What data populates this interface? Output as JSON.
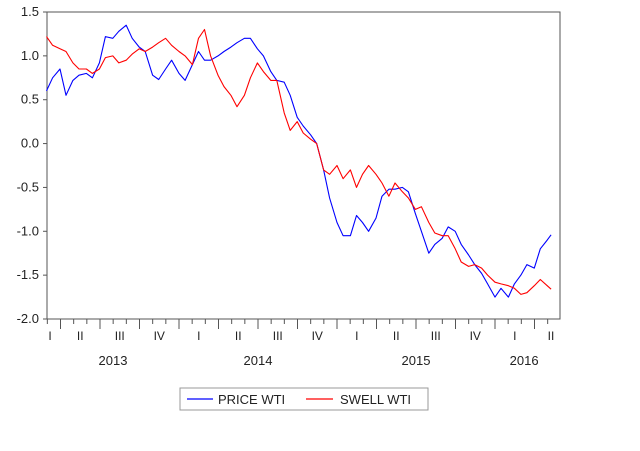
{
  "chart_data": {
    "type": "line",
    "title": "",
    "xlabel": "",
    "ylabel": "",
    "ylim": [
      -2.0,
      1.5
    ],
    "yticks": [
      "1.5",
      "1.0",
      "0.5",
      "0.0",
      "-0.5",
      "-1.0",
      "-1.5",
      "-2.0"
    ],
    "xrange": [
      "2013-03-01",
      "2016-05-15"
    ],
    "quarter_labels": [
      "I",
      "II",
      "III",
      "IV"
    ],
    "years": [
      "2013",
      "2014",
      "2015",
      "2016"
    ],
    "grid": false,
    "legend_placement": "bottom",
    "series": [
      {
        "name": "PRICE WTI",
        "color": "#0000ff",
        "points": [
          [
            "2013-03-01",
            0.6
          ],
          [
            "2013-03-15",
            0.75
          ],
          [
            "2013-04-01",
            0.85
          ],
          [
            "2013-04-15",
            0.55
          ],
          [
            "2013-05-01",
            0.72
          ],
          [
            "2013-05-15",
            0.78
          ],
          [
            "2013-06-01",
            0.8
          ],
          [
            "2013-06-15",
            0.75
          ],
          [
            "2013-07-01",
            0.92
          ],
          [
            "2013-07-15",
            1.22
          ],
          [
            "2013-08-01",
            1.2
          ],
          [
            "2013-08-15",
            1.28
          ],
          [
            "2013-09-01",
            1.35
          ],
          [
            "2013-09-15",
            1.2
          ],
          [
            "2013-10-01",
            1.1
          ],
          [
            "2013-10-15",
            1.05
          ],
          [
            "2013-11-01",
            0.78
          ],
          [
            "2013-11-15",
            0.73
          ],
          [
            "2013-12-01",
            0.85
          ],
          [
            "2013-12-15",
            0.95
          ],
          [
            "2014-01-01",
            0.8
          ],
          [
            "2014-01-15",
            0.72
          ],
          [
            "2014-02-01",
            0.9
          ],
          [
            "2014-02-15",
            1.05
          ],
          [
            "2014-03-01",
            0.95
          ],
          [
            "2014-03-15",
            0.95
          ],
          [
            "2014-04-01",
            1.0
          ],
          [
            "2014-04-15",
            1.05
          ],
          [
            "2014-05-01",
            1.1
          ],
          [
            "2014-05-15",
            1.15
          ],
          [
            "2014-06-01",
            1.2
          ],
          [
            "2014-06-15",
            1.2
          ],
          [
            "2014-07-01",
            1.08
          ],
          [
            "2014-07-15",
            1.0
          ],
          [
            "2014-08-01",
            0.82
          ],
          [
            "2014-08-15",
            0.72
          ],
          [
            "2014-09-01",
            0.7
          ],
          [
            "2014-09-15",
            0.55
          ],
          [
            "2014-10-01",
            0.3
          ],
          [
            "2014-10-15",
            0.2
          ],
          [
            "2014-11-01",
            0.1
          ],
          [
            "2014-11-15",
            0.0
          ],
          [
            "2014-12-01",
            -0.3
          ],
          [
            "2014-12-15",
            -0.62
          ],
          [
            "2015-01-01",
            -0.9
          ],
          [
            "2015-01-15",
            -1.05
          ],
          [
            "2015-02-01",
            -1.05
          ],
          [
            "2015-02-15",
            -0.82
          ],
          [
            "2015-03-01",
            -0.9
          ],
          [
            "2015-03-15",
            -1.0
          ],
          [
            "2015-04-01",
            -0.85
          ],
          [
            "2015-04-15",
            -0.6
          ],
          [
            "2015-05-01",
            -0.52
          ],
          [
            "2015-05-15",
            -0.52
          ],
          [
            "2015-06-01",
            -0.5
          ],
          [
            "2015-06-15",
            -0.55
          ],
          [
            "2015-07-01",
            -0.8
          ],
          [
            "2015-07-15",
            -1.0
          ],
          [
            "2015-08-01",
            -1.25
          ],
          [
            "2015-08-15",
            -1.15
          ],
          [
            "2015-09-01",
            -1.08
          ],
          [
            "2015-09-15",
            -0.95
          ],
          [
            "2015-10-01",
            -1.0
          ],
          [
            "2015-10-15",
            -1.15
          ],
          [
            "2015-11-01",
            -1.27
          ],
          [
            "2015-11-15",
            -1.38
          ],
          [
            "2015-12-01",
            -1.48
          ],
          [
            "2015-12-15",
            -1.6
          ],
          [
            "2016-01-01",
            -1.75
          ],
          [
            "2016-01-15",
            -1.65
          ],
          [
            "2016-02-01",
            -1.75
          ],
          [
            "2016-02-15",
            -1.6
          ],
          [
            "2016-03-01",
            -1.5
          ],
          [
            "2016-03-15",
            -1.38
          ],
          [
            "2016-04-01",
            -1.42
          ],
          [
            "2016-04-15",
            -1.2
          ],
          [
            "2016-05-01",
            -1.1
          ],
          [
            "2016-05-10",
            -1.04
          ]
        ]
      },
      {
        "name": "SWELL WTI",
        "color": "#ff0000",
        "points": [
          [
            "2013-03-01",
            1.22
          ],
          [
            "2013-03-15",
            1.12
          ],
          [
            "2013-04-01",
            1.08
          ],
          [
            "2013-04-15",
            1.05
          ],
          [
            "2013-05-01",
            0.92
          ],
          [
            "2013-05-15",
            0.85
          ],
          [
            "2013-06-01",
            0.85
          ],
          [
            "2013-06-15",
            0.8
          ],
          [
            "2013-07-01",
            0.85
          ],
          [
            "2013-07-15",
            0.98
          ],
          [
            "2013-08-01",
            1.0
          ],
          [
            "2013-08-15",
            0.92
          ],
          [
            "2013-09-01",
            0.95
          ],
          [
            "2013-09-15",
            1.02
          ],
          [
            "2013-10-01",
            1.08
          ],
          [
            "2013-10-15",
            1.05
          ],
          [
            "2013-11-01",
            1.1
          ],
          [
            "2013-11-15",
            1.15
          ],
          [
            "2013-12-01",
            1.2
          ],
          [
            "2013-12-15",
            1.12
          ],
          [
            "2014-01-01",
            1.05
          ],
          [
            "2014-01-15",
            1.0
          ],
          [
            "2014-02-01",
            0.9
          ],
          [
            "2014-02-15",
            1.2
          ],
          [
            "2014-03-01",
            1.3
          ],
          [
            "2014-03-15",
            1.0
          ],
          [
            "2014-04-01",
            0.78
          ],
          [
            "2014-04-15",
            0.65
          ],
          [
            "2014-05-01",
            0.55
          ],
          [
            "2014-05-15",
            0.42
          ],
          [
            "2014-06-01",
            0.55
          ],
          [
            "2014-06-15",
            0.75
          ],
          [
            "2014-07-01",
            0.92
          ],
          [
            "2014-07-15",
            0.82
          ],
          [
            "2014-08-01",
            0.72
          ],
          [
            "2014-08-15",
            0.72
          ],
          [
            "2014-09-01",
            0.35
          ],
          [
            "2014-09-15",
            0.15
          ],
          [
            "2014-10-01",
            0.25
          ],
          [
            "2014-10-15",
            0.12
          ],
          [
            "2014-11-01",
            0.05
          ],
          [
            "2014-11-15",
            0.0
          ],
          [
            "2014-12-01",
            -0.3
          ],
          [
            "2014-12-15",
            -0.35
          ],
          [
            "2015-01-01",
            -0.25
          ],
          [
            "2015-01-15",
            -0.4
          ],
          [
            "2015-02-01",
            -0.3
          ],
          [
            "2015-02-15",
            -0.5
          ],
          [
            "2015-03-01",
            -0.35
          ],
          [
            "2015-03-15",
            -0.25
          ],
          [
            "2015-04-01",
            -0.35
          ],
          [
            "2015-04-15",
            -0.45
          ],
          [
            "2015-05-01",
            -0.6
          ],
          [
            "2015-05-15",
            -0.45
          ],
          [
            "2015-06-01",
            -0.55
          ],
          [
            "2015-06-15",
            -0.62
          ],
          [
            "2015-07-01",
            -0.75
          ],
          [
            "2015-07-15",
            -0.72
          ],
          [
            "2015-08-01",
            -0.9
          ],
          [
            "2015-08-15",
            -1.02
          ],
          [
            "2015-09-01",
            -1.05
          ],
          [
            "2015-09-15",
            -1.05
          ],
          [
            "2015-10-01",
            -1.2
          ],
          [
            "2015-10-15",
            -1.35
          ],
          [
            "2015-11-01",
            -1.4
          ],
          [
            "2015-11-15",
            -1.38
          ],
          [
            "2015-12-01",
            -1.42
          ],
          [
            "2015-12-15",
            -1.5
          ],
          [
            "2016-01-01",
            -1.58
          ],
          [
            "2016-01-15",
            -1.6
          ],
          [
            "2016-02-01",
            -1.62
          ],
          [
            "2016-02-15",
            -1.65
          ],
          [
            "2016-03-01",
            -1.72
          ],
          [
            "2016-03-15",
            -1.7
          ],
          [
            "2016-04-01",
            -1.62
          ],
          [
            "2016-04-15",
            -1.55
          ],
          [
            "2016-05-01",
            -1.62
          ],
          [
            "2016-05-10",
            -1.66
          ]
        ]
      }
    ]
  }
}
